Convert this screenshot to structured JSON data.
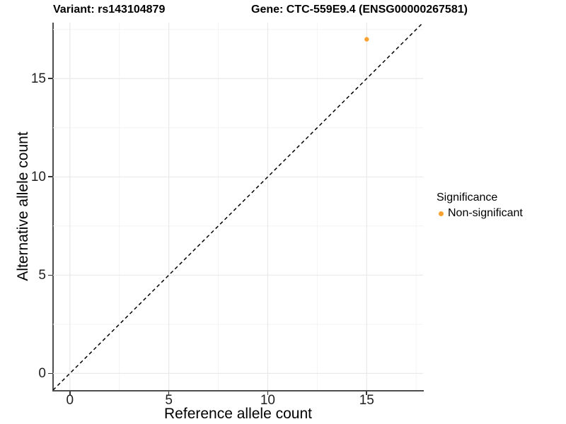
{
  "titles": {
    "variant": "Variant: rs143104879",
    "gene": "Gene: CTC-559E9.4 (ENSG00000267581)"
  },
  "chart_data": {
    "type": "scatter",
    "title": "Variant: rs143104879   Gene: CTC-559E9.4 (ENSG00000267581)",
    "xlabel": "Reference allele count",
    "ylabel": "Alternative allele count",
    "xlim": [
      -0.85,
      17.85
    ],
    "ylim": [
      -0.85,
      17.85
    ],
    "x_ticks": [
      0,
      5,
      10,
      15
    ],
    "y_ticks": [
      0,
      5,
      10,
      15
    ],
    "grid": {
      "major": true,
      "minor": true,
      "major_color": "#e9e9e9",
      "minor_color": "#f4f4f4"
    },
    "reference_line": {
      "slope": 1,
      "intercept": 0,
      "style": "dashed",
      "color": "#000000"
    },
    "series": [
      {
        "name": "Non-significant",
        "color": "#F9A232",
        "points": [
          {
            "x": 15,
            "y": 17
          }
        ]
      }
    ],
    "point_radius": 3.2,
    "legend_position": "right"
  },
  "legend": {
    "title": "Significance",
    "items": [
      {
        "label": "Non-significant",
        "color": "#F9A232"
      }
    ]
  },
  "style": {
    "axis_line_color": "#4d4d4d",
    "tick_color": "#333333",
    "background": "#ffffff"
  }
}
